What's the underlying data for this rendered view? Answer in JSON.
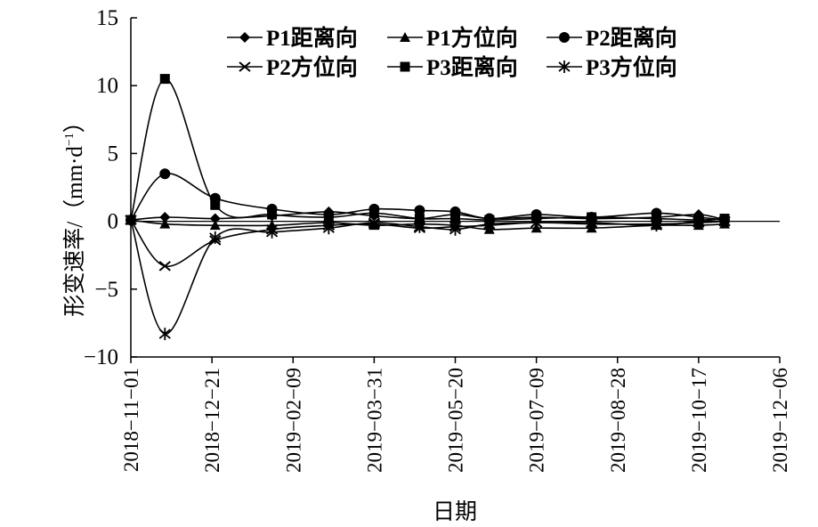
{
  "chart_data": {
    "type": "line",
    "title": "",
    "xlabel": "日期",
    "ylabel_main": "形变速率/",
    "ylabel_unit_prefix": "（mm·d",
    "ylabel_unit_sup": "−1",
    "ylabel_unit_suffix": "）",
    "ylim": [
      -10,
      15
    ],
    "yticks": [
      15,
      10,
      5,
      0,
      -5,
      -10
    ],
    "ytick_labels": [
      "15",
      "10",
      "5",
      "0",
      "−5",
      "−10"
    ],
    "xticks": [
      "2018-11-01",
      "2018-12-21",
      "2019-02-09",
      "2019-03-31",
      "2019-05-20",
      "2019-07-09",
      "2019-08-28",
      "2019-10-17",
      "2019-12-06"
    ],
    "xtick_labels": [
      "2018−11−01",
      "2018−12−21",
      "2019−02−09",
      "2019−03−31",
      "2019−05−20",
      "2019−07−09",
      "2019−08−28",
      "2019−10−17",
      "2019−12−06"
    ],
    "xlim": [
      "2018-11-01",
      "2019-12-06"
    ],
    "legend_position": "top-right",
    "grid": false,
    "series": [
      {
        "name": "P1距离向",
        "marker": "diamond",
        "x": [
          "2018-11-01",
          "2018-11-22",
          "2018-12-23",
          "2019-01-27",
          "2019-03-03",
          "2019-03-31",
          "2019-04-28",
          "2019-05-20",
          "2019-06-10",
          "2019-07-09",
          "2019-08-12",
          "2019-09-21",
          "2019-10-17",
          "2019-11-02"
        ],
        "values": [
          0.1,
          0.3,
          0.2,
          0.4,
          0.7,
          0.4,
          0.2,
          0.5,
          0.2,
          0.3,
          0.2,
          0.3,
          0.5,
          0.1
        ]
      },
      {
        "name": "P1方位向",
        "marker": "triangle",
        "x": [
          "2018-11-01",
          "2018-11-22",
          "2018-12-23",
          "2019-01-27",
          "2019-03-03",
          "2019-03-31",
          "2019-04-28",
          "2019-05-20",
          "2019-06-10",
          "2019-07-09",
          "2019-08-12",
          "2019-09-21",
          "2019-10-17",
          "2019-11-02"
        ],
        "values": [
          0.1,
          -0.2,
          -0.3,
          -0.3,
          -0.1,
          -0.3,
          -0.2,
          -0.3,
          -0.6,
          -0.5,
          -0.5,
          -0.3,
          -0.3,
          -0.2
        ]
      },
      {
        "name": "P2距离向",
        "marker": "circle",
        "x": [
          "2018-11-01",
          "2018-11-22",
          "2018-12-23",
          "2019-01-27",
          "2019-03-03",
          "2019-03-31",
          "2019-04-28",
          "2019-05-20",
          "2019-06-10",
          "2019-07-09",
          "2019-08-12",
          "2019-09-21",
          "2019-10-17",
          "2019-11-02"
        ],
        "values": [
          0.1,
          3.5,
          1.7,
          0.9,
          0.5,
          0.9,
          0.8,
          0.7,
          0.2,
          0.5,
          0.3,
          0.6,
          0.3,
          0.1
        ]
      },
      {
        "name": "P2方位向",
        "marker": "x",
        "x": [
          "2018-11-01",
          "2018-11-22",
          "2018-12-23",
          "2019-01-27",
          "2019-03-03",
          "2019-03-31",
          "2019-04-28",
          "2019-05-20",
          "2019-06-10",
          "2019-07-09",
          "2019-08-12",
          "2019-09-21",
          "2019-10-17",
          "2019-11-02"
        ],
        "values": [
          0.1,
          -3.3,
          -1.4,
          -0.6,
          -0.3,
          -0.2,
          -0.5,
          -0.4,
          -0.3,
          -0.1,
          -0.2,
          -0.2,
          -0.1,
          0.0
        ]
      },
      {
        "name": "P3距离向",
        "marker": "square",
        "x": [
          "2018-11-01",
          "2018-11-22",
          "2018-12-23",
          "2019-01-27",
          "2019-03-03",
          "2019-03-31",
          "2019-04-28",
          "2019-05-20",
          "2019-06-10",
          "2019-07-09",
          "2019-08-12",
          "2019-09-21",
          "2019-10-17",
          "2019-11-02"
        ],
        "values": [
          0.1,
          10.5,
          1.2,
          0.5,
          0.3,
          0.6,
          0.2,
          0.2,
          0.1,
          0.2,
          0.3,
          0.2,
          0.1,
          0.2
        ]
      },
      {
        "name": "P3方位向",
        "marker": "asterisk",
        "x": [
          "2018-11-01",
          "2018-11-22",
          "2018-12-23",
          "2019-01-27",
          "2019-03-03",
          "2019-03-31",
          "2019-04-28",
          "2019-05-20",
          "2019-06-10",
          "2019-07-09",
          "2019-08-12",
          "2019-09-21",
          "2019-10-17",
          "2019-11-02"
        ],
        "values": [
          0.1,
          -8.3,
          -1.2,
          -0.8,
          -0.5,
          -0.1,
          -0.4,
          -0.6,
          -0.2,
          -0.1,
          -0.1,
          -0.3,
          0.0,
          0.0
        ]
      }
    ]
  }
}
